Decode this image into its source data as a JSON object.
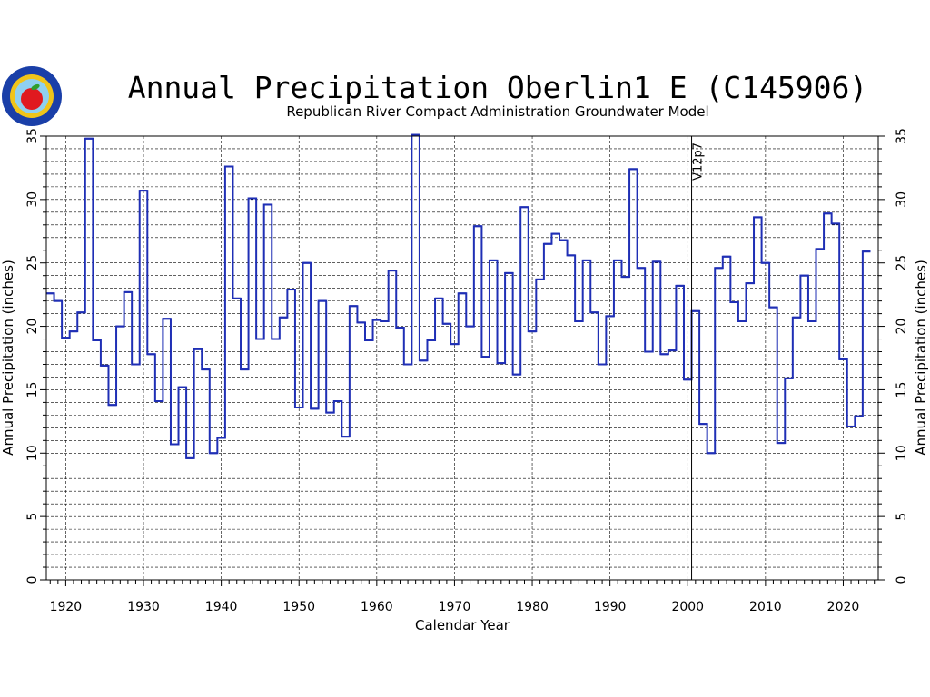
{
  "chart_data": {
    "type": "line",
    "title": "Annual Precipitation Oberlin1 E (C145906)",
    "subtitle": "Republican River Compact Administration Groundwater Model",
    "xlabel": "Calendar Year",
    "ylabel": "Annual Precipitation (inches)",
    "ylabel_right": "Annual Precipitation (inches)",
    "xlim": [
      1917.5,
      2024.5
    ],
    "ylim": [
      0,
      35
    ],
    "xticks": [
      1920,
      1930,
      1940,
      1950,
      1960,
      1970,
      1980,
      1990,
      2000,
      2010,
      2020
    ],
    "yticks": [
      0,
      5,
      10,
      15,
      20,
      25,
      30,
      35
    ],
    "grid": true,
    "marker": {
      "x": 2001,
      "label": "V12p7"
    },
    "step": "year",
    "start_year": 1918,
    "values": [
      22.6,
      22.0,
      19.1,
      19.6,
      21.1,
      34.8,
      18.9,
      16.9,
      13.8,
      20.0,
      22.7,
      17.0,
      30.7,
      17.8,
      14.1,
      20.6,
      10.7,
      15.2,
      9.6,
      18.2,
      16.6,
      10.0,
      11.2,
      32.6,
      22.2,
      16.6,
      30.1,
      19.0,
      29.6,
      19.0,
      20.7,
      22.9,
      13.6,
      25.0,
      13.5,
      22.0,
      13.2,
      14.1,
      11.3,
      21.6,
      20.3,
      18.9,
      20.5,
      20.4,
      24.4,
      19.9,
      17.0,
      35.1,
      17.3,
      18.9,
      22.2,
      20.2,
      18.6,
      22.6,
      20.0,
      27.9,
      17.6,
      25.2,
      17.1,
      24.2,
      16.2,
      29.4,
      19.6,
      23.7,
      26.5,
      27.3,
      26.8,
      25.6,
      20.4,
      25.2,
      21.1,
      17.0,
      20.8,
      25.2,
      23.9,
      32.4,
      24.6,
      18.0,
      25.1,
      17.8,
      18.1,
      23.2,
      15.8,
      21.2,
      12.3,
      10.0,
      24.6,
      25.5,
      21.9,
      20.4,
      23.4,
      28.6,
      25.0,
      21.5,
      10.8,
      15.9,
      20.7,
      24.0,
      20.4,
      26.1,
      28.9,
      28.1,
      17.4,
      12.1,
      12.9,
      25.9
    ],
    "colors": {
      "series": "#1f2fb5",
      "grid": "#000000",
      "logo_outer": "#1a3fa8",
      "logo_ring": "#f0c419",
      "logo_apple": "#e0191f",
      "logo_leaf": "#2e9e2e"
    }
  }
}
